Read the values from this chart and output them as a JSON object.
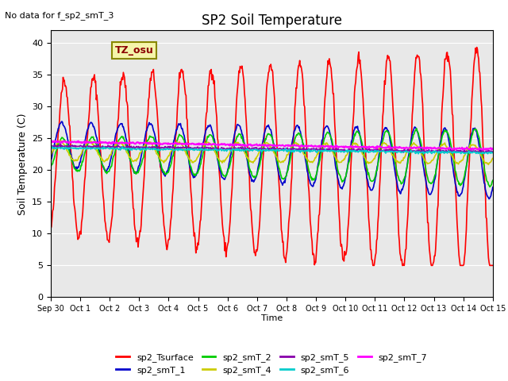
{
  "title": "SP2 Soil Temperature",
  "subtitle": "No data for f_sp2_smT_3",
  "ylabel": "Soil Temperature (C)",
  "xlabel": "Time",
  "tz_label": "TZ_osu",
  "ylim": [
    0,
    42
  ],
  "yticks": [
    0,
    5,
    10,
    15,
    20,
    25,
    30,
    35,
    40
  ],
  "x_tick_labels": [
    "Sep 30",
    "Oct 1",
    "Oct 2",
    "Oct 3",
    "Oct 4",
    "Oct 5",
    "Oct 6",
    "Oct 7",
    "Oct 8",
    "Oct 9",
    "Oct 10",
    "Oct 11",
    "Oct 12",
    "Oct 13",
    "Oct 14",
    "Oct 15"
  ],
  "background_color": "#e8e8e8",
  "series": {
    "sp2_Tsurface": {
      "color": "#ff0000",
      "linewidth": 1.2
    },
    "sp2_smT_1": {
      "color": "#0000cc",
      "linewidth": 1.2
    },
    "sp2_smT_2": {
      "color": "#00cc00",
      "linewidth": 1.2
    },
    "sp2_smT_4": {
      "color": "#cccc00",
      "linewidth": 1.2
    },
    "sp2_smT_5": {
      "color": "#8800aa",
      "linewidth": 1.2
    },
    "sp2_smT_6": {
      "color": "#00cccc",
      "linewidth": 1.2
    },
    "sp2_smT_7": {
      "color": "#ff00ff",
      "linewidth": 1.5
    }
  }
}
